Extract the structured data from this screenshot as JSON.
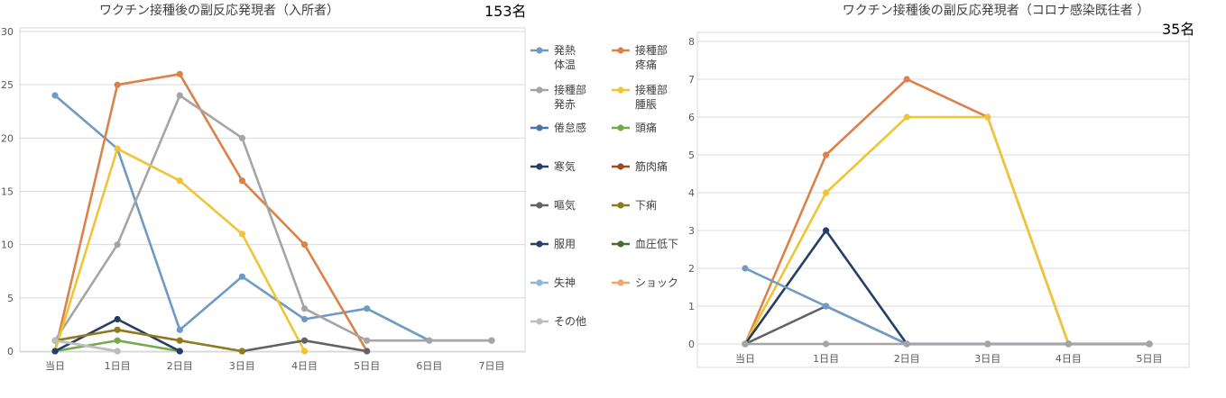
{
  "chart_data": [
    {
      "type": "line",
      "title": "ワクチン接種後の副反応発現者（入所者）",
      "title_count": "153名",
      "categories": [
        "当日",
        "1日目",
        "2日目",
        "3日目",
        "4日目",
        "5日目",
        "6日目",
        "7日目"
      ],
      "ylim": [
        0,
        30
      ],
      "yticks": [
        0,
        5,
        10,
        15,
        20,
        25,
        30
      ],
      "grid": true,
      "legend_position": "right",
      "series": [
        {
          "name": "発熱\n体温",
          "color": "#6f9ac4",
          "values": [
            24,
            19,
            2,
            7,
            3,
            4,
            1,
            1
          ]
        },
        {
          "name": "接種部\n疼痛",
          "color": "#d9834b",
          "values": [
            0,
            25,
            26,
            16,
            10,
            0,
            null,
            null
          ]
        },
        {
          "name": "接種部\n発赤",
          "color": "#a5a5a5",
          "values": [
            1,
            10,
            24,
            20,
            4,
            1,
            1,
            1
          ]
        },
        {
          "name": "接種部\n腫脹",
          "color": "#f0c437",
          "values": [
            0,
            19,
            16,
            11,
            0,
            null,
            null,
            null
          ]
        },
        {
          "name": "倦怠感",
          "color": "#4e73a7",
          "values": [
            null,
            null,
            null,
            null,
            null,
            null,
            null,
            null
          ]
        },
        {
          "name": "頭痛",
          "color": "#75aa4e",
          "values": [
            0,
            1,
            0,
            null,
            null,
            null,
            null,
            null
          ]
        },
        {
          "name": "寒気",
          "color": "#243e66",
          "values": [
            0,
            3,
            0,
            null,
            null,
            null,
            null,
            null
          ]
        },
        {
          "name": "筋肉痛",
          "color": "#9c4b1e",
          "values": [
            null,
            null,
            null,
            null,
            null,
            null,
            null,
            null
          ]
        },
        {
          "name": "嘔気",
          "color": "#636363",
          "values": [
            null,
            null,
            null,
            0,
            1,
            0,
            null,
            null
          ]
        },
        {
          "name": "下痢",
          "color": "#8f7a1d",
          "values": [
            1,
            2,
            1,
            0,
            null,
            null,
            null,
            null
          ]
        },
        {
          "name": "服用",
          "color": "#2b3f6b",
          "values": [
            null,
            null,
            null,
            null,
            null,
            null,
            null,
            null
          ]
        },
        {
          "name": "血圧低下",
          "color": "#496b34",
          "values": [
            null,
            null,
            null,
            null,
            null,
            null,
            null,
            null
          ]
        },
        {
          "name": "失神",
          "color": "#93b3dc",
          "values": [
            1,
            0,
            null,
            null,
            null,
            null,
            null,
            null
          ]
        },
        {
          "name": "ショック",
          "color": "#f1a66c",
          "values": [
            null,
            null,
            null,
            null,
            null,
            null,
            null,
            null
          ]
        },
        {
          "name": "その他",
          "color": "#bdbdbd",
          "values": [
            1,
            0,
            null,
            null,
            null,
            null,
            null,
            null
          ]
        }
      ]
    },
    {
      "type": "line",
      "title": "ワクチン接種後の副反応発現者（コロナ感染既往者 ）",
      "title_count": "35名",
      "categories": [
        "当日",
        "1日目",
        "2日目",
        "3日目",
        "4日目",
        "5日目"
      ],
      "ylim": [
        0,
        8
      ],
      "yticks": [
        0,
        1,
        2,
        3,
        4,
        5,
        6,
        7,
        8
      ],
      "grid": true,
      "legend_position": "none",
      "series": [
        {
          "color": "#d9834b",
          "values": [
            0,
            5,
            7,
            6,
            0,
            0
          ]
        },
        {
          "color": "#f0c437",
          "values": [
            0,
            4,
            6,
            6,
            0,
            0
          ]
        },
        {
          "color": "#243e66",
          "values": [
            0,
            3,
            0,
            0,
            0,
            0
          ]
        },
        {
          "color": "#636363",
          "values": [
            0,
            1,
            0,
            0,
            0,
            0
          ]
        },
        {
          "color": "#6f9ac4",
          "values": [
            2,
            1,
            0,
            0,
            0,
            0
          ]
        },
        {
          "color": "#a5a5a5",
          "values": [
            0,
            0,
            0,
            0,
            0,
            0
          ]
        }
      ]
    }
  ]
}
